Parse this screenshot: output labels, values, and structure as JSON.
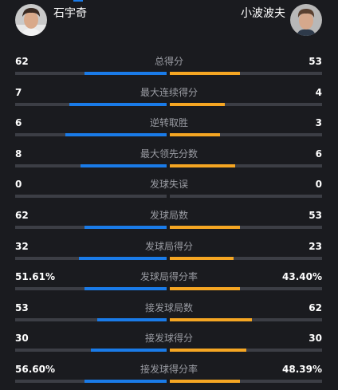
{
  "header": {
    "left_player": {
      "name": "石宇奇"
    },
    "right_player": {
      "name": "小波波夫"
    }
  },
  "colors": {
    "left_bar": "#1a7be8",
    "right_bar": "#f5a623",
    "track": "#3c3e45"
  },
  "stats": [
    {
      "label": "总得分",
      "left": "62",
      "right": "53",
      "left_share": 0.54,
      "right_share": 0.46
    },
    {
      "label": "最大连续得分",
      "left": "7",
      "right": "4",
      "left_share": 0.64,
      "right_share": 0.36
    },
    {
      "label": "逆转取胜",
      "left": "6",
      "right": "3",
      "left_share": 0.67,
      "right_share": 0.33
    },
    {
      "label": "最大领先分数",
      "left": "8",
      "right": "6",
      "left_share": 0.57,
      "right_share": 0.43
    },
    {
      "label": "发球失误",
      "left": "0",
      "right": "0",
      "left_share": 0,
      "right_share": 0
    },
    {
      "label": "发球局数",
      "left": "62",
      "right": "53",
      "left_share": 0.54,
      "right_share": 0.46
    },
    {
      "label": "发球局得分",
      "left": "32",
      "right": "23",
      "left_share": 0.58,
      "right_share": 0.42
    },
    {
      "label": "发球局得分率",
      "left": "51.61%",
      "right": "43.40%",
      "left_share": 0.54,
      "right_share": 0.46
    },
    {
      "label": "接发球局数",
      "left": "53",
      "right": "62",
      "left_share": 0.46,
      "right_share": 0.54
    },
    {
      "label": "接发球得分",
      "left": "30",
      "right": "30",
      "left_share": 0.5,
      "right_share": 0.5
    },
    {
      "label": "接发球得分率",
      "left": "56.60%",
      "right": "48.39%",
      "left_share": 0.54,
      "right_share": 0.46
    }
  ]
}
